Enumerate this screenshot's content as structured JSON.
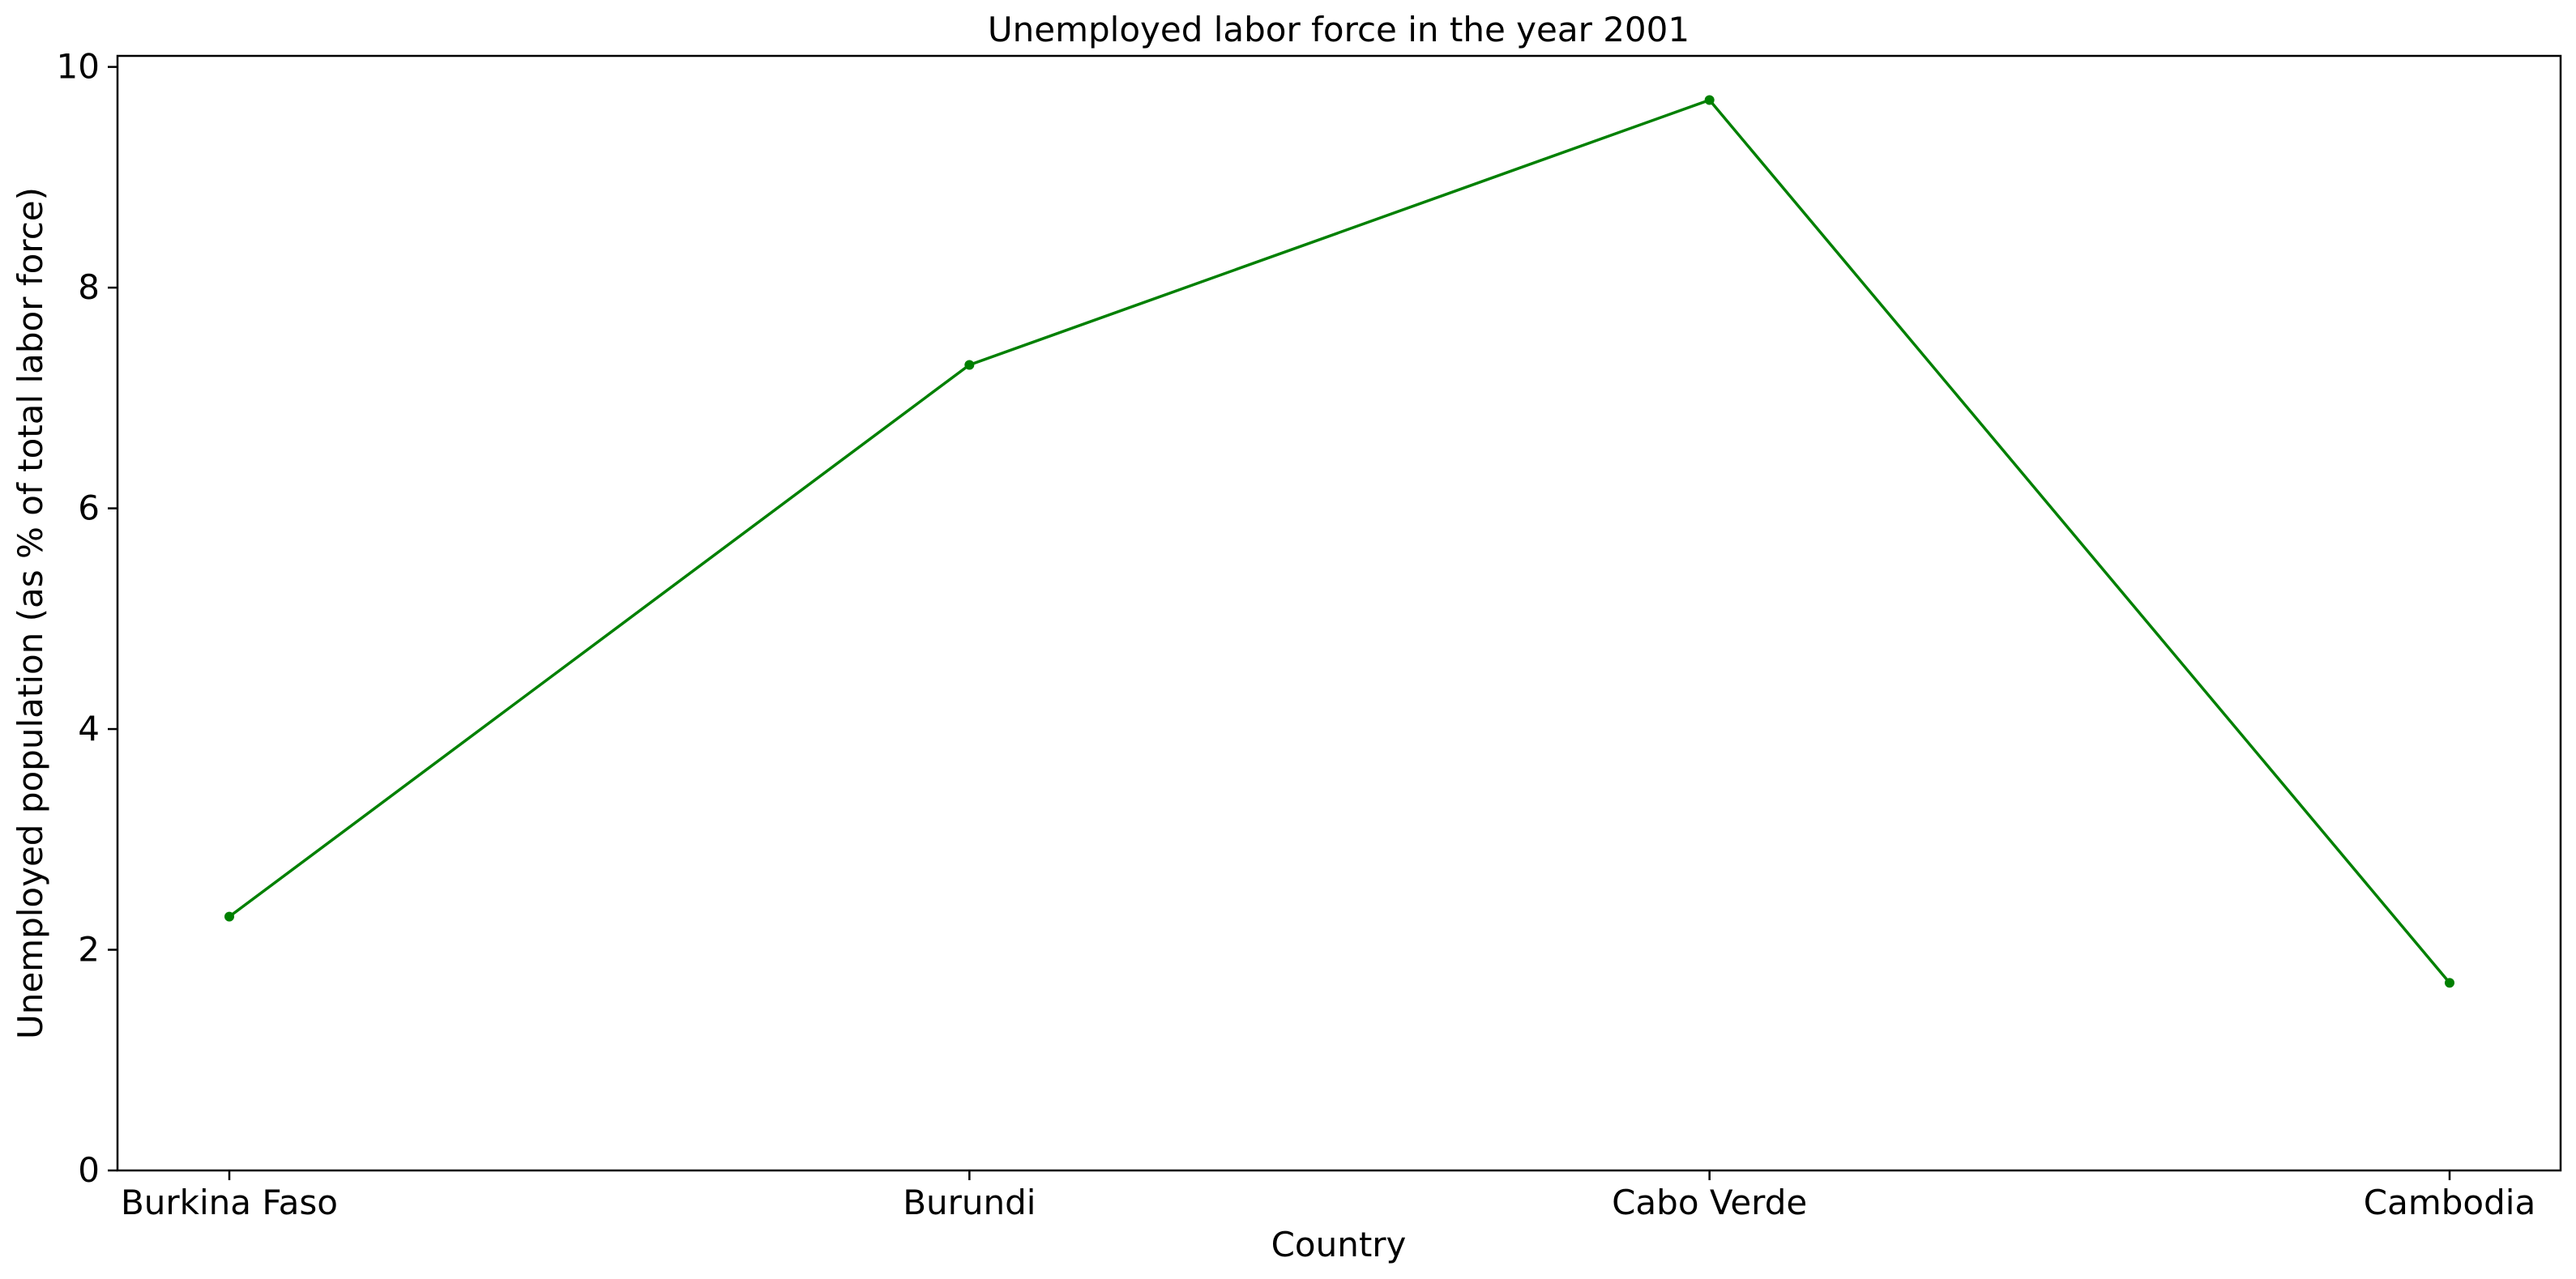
{
  "chart_data": {
    "type": "line",
    "title": "Unemployed labor force in the year 2001",
    "xlabel": "Country",
    "ylabel": "Unemployed population (as % of total labor force)",
    "categories": [
      "Burkina Faso",
      "Burundi",
      "Cabo Verde",
      "Cambodia"
    ],
    "series": [
      {
        "values": [
          2.3,
          7.3,
          9.7,
          1.7
        ],
        "color": "#008000",
        "marker": "dot"
      }
    ],
    "ylim": [
      0,
      10.1
    ],
    "yticks": [
      0,
      2,
      4,
      6,
      8,
      10
    ],
    "grid": false,
    "legend": "none"
  }
}
